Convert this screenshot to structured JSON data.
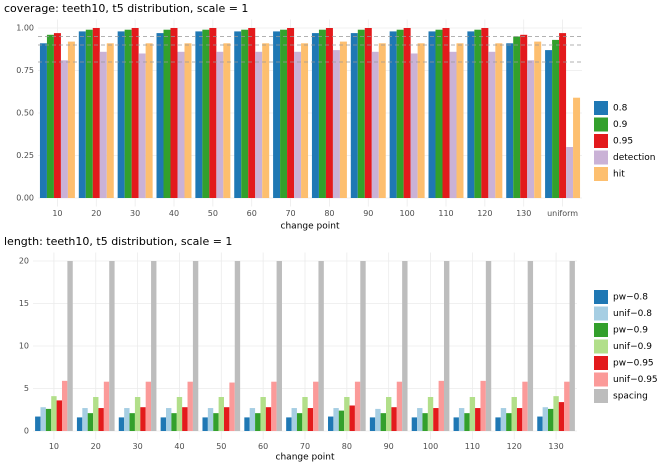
{
  "chart_data": [
    {
      "type": "bar",
      "title": "coverage: teeth10, t5 distribution, scale = 1",
      "x_label": "change point",
      "categories": [
        "10",
        "20",
        "30",
        "40",
        "50",
        "60",
        "70",
        "80",
        "90",
        "100",
        "110",
        "120",
        "130",
        "uniform"
      ],
      "series": [
        {
          "name": "0.8",
          "color": "#1f78b4",
          "values": [
            0.91,
            0.98,
            0.98,
            0.97,
            0.98,
            0.98,
            0.98,
            0.97,
            0.97,
            0.98,
            0.98,
            0.98,
            0.91,
            0.87
          ]
        },
        {
          "name": "0.9",
          "color": "#33a02c",
          "values": [
            0.96,
            0.99,
            0.99,
            0.99,
            0.99,
            0.99,
            0.99,
            0.99,
            0.99,
            0.99,
            0.99,
            0.99,
            0.95,
            0.93
          ]
        },
        {
          "name": "0.95",
          "color": "#e31a1c",
          "values": [
            0.97,
            1.0,
            1.0,
            1.0,
            1.0,
            1.0,
            1.0,
            1.0,
            1.0,
            1.0,
            1.0,
            1.0,
            0.96,
            0.97
          ]
        },
        {
          "name": "detection",
          "color": "#cab2d6",
          "values": [
            0.81,
            0.86,
            0.85,
            0.86,
            0.86,
            0.86,
            0.86,
            0.87,
            0.86,
            0.85,
            0.86,
            0.86,
            0.81,
            0.3
          ]
        },
        {
          "name": "hit",
          "color": "#fdbf6f",
          "values": [
            0.92,
            0.91,
            0.91,
            0.91,
            0.91,
            0.91,
            0.91,
            0.92,
            0.91,
            0.91,
            0.91,
            0.91,
            0.92,
            0.59
          ]
        }
      ],
      "reference_lines": [
        0.8,
        0.9,
        0.95
      ],
      "ylim": [
        -0.05,
        1.05
      ],
      "yticks": [
        {
          "value": 0,
          "label": "0.00"
        },
        {
          "value": 0.25,
          "label": "0.25"
        },
        {
          "value": 0.5,
          "label": "0.50"
        },
        {
          "value": 0.75,
          "label": "0.75"
        },
        {
          "value": 1,
          "label": "1.00"
        }
      ],
      "grid": true,
      "legend": "right"
    },
    {
      "type": "bar",
      "title": "length: teeth10, t5 distribution, scale = 1",
      "x_label": "change point",
      "categories": [
        "10",
        "20",
        "30",
        "40",
        "50",
        "60",
        "70",
        "80",
        "90",
        "100",
        "110",
        "120",
        "130"
      ],
      "series": [
        {
          "name": "pw−0.8",
          "color": "#1f78b4",
          "values": [
            1.7,
            1.6,
            1.6,
            1.6,
            1.6,
            1.6,
            1.6,
            1.7,
            1.6,
            1.6,
            1.6,
            1.6,
            1.7
          ]
        },
        {
          "name": "unif−0.8",
          "color": "#a6cee3",
          "values": [
            2.8,
            2.7,
            2.7,
            2.7,
            2.7,
            2.7,
            2.7,
            2.7,
            2.6,
            2.7,
            2.7,
            2.7,
            2.8
          ]
        },
        {
          "name": "pw−0.9",
          "color": "#33a02c",
          "values": [
            2.6,
            2.1,
            2.1,
            2.1,
            2.1,
            2.1,
            2.1,
            2.4,
            2.1,
            2.1,
            2.1,
            2.1,
            2.6
          ]
        },
        {
          "name": "unif−0.9",
          "color": "#b2df8a",
          "values": [
            4.1,
            4.0,
            4.0,
            4.0,
            4.0,
            4.0,
            4.0,
            4.0,
            4.0,
            4.0,
            4.0,
            4.0,
            4.1
          ]
        },
        {
          "name": "pw−0.95",
          "color": "#e31a1c",
          "values": [
            3.6,
            2.7,
            2.8,
            2.8,
            2.8,
            2.8,
            2.7,
            3.0,
            2.8,
            2.7,
            2.7,
            2.7,
            3.4
          ]
        },
        {
          "name": "unif−0.95",
          "color": "#fb9a99",
          "values": [
            5.9,
            5.8,
            5.8,
            5.8,
            5.7,
            5.8,
            5.8,
            5.8,
            5.8,
            5.9,
            5.9,
            5.8,
            5.8
          ]
        },
        {
          "name": "spacing",
          "color": "#bdbdbd",
          "values": [
            20,
            20,
            20,
            20,
            20,
            20,
            20,
            20,
            20,
            20,
            20,
            20,
            20
          ]
        }
      ],
      "ylim": [
        -1,
        21
      ],
      "yticks": [
        0,
        5,
        10,
        15,
        20
      ],
      "grid": true,
      "legend": "right"
    }
  ]
}
